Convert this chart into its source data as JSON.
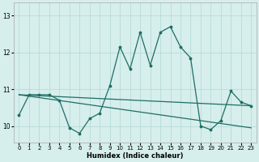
{
  "xlabel": "Humidex (Indice chaleur)",
  "xlim": [
    -0.5,
    23.5
  ],
  "ylim": [
    9.55,
    13.35
  ],
  "xticks": [
    0,
    1,
    2,
    3,
    4,
    5,
    6,
    7,
    8,
    9,
    10,
    11,
    12,
    13,
    14,
    15,
    16,
    17,
    18,
    19,
    20,
    21,
    22,
    23
  ],
  "yticks": [
    10,
    11,
    12,
    13
  ],
  "bg_color": "#d6eeec",
  "grid_color": "#b8dbd8",
  "line_color": "#1e6e64",
  "line1_y": [
    10.3,
    10.85,
    10.85,
    10.85,
    10.7,
    9.95,
    9.8,
    10.2,
    10.35,
    11.1,
    12.15,
    11.55,
    12.55,
    11.65,
    12.55,
    12.7,
    12.15,
    11.85,
    10.0,
    9.9,
    10.15,
    10.95,
    10.65,
    10.55
  ],
  "line2_y": [
    10.85,
    10.55
  ],
  "line2_x": [
    0,
    23
  ],
  "line3_y": [
    10.85,
    9.95
  ],
  "line3_x": [
    0,
    23
  ]
}
